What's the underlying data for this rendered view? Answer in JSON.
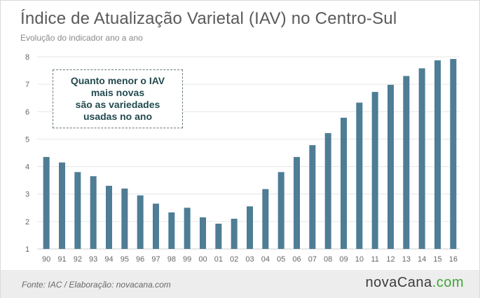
{
  "header": {
    "title": "Índice de Atualização Varietal (IAV) no Centro-Sul",
    "subtitle": "Evolução do indicador ano a ano"
  },
  "annotation": {
    "lines": [
      "Quanto menor o IAV",
      "mais novas",
      "são as variedades",
      "usadas no ano"
    ]
  },
  "footer": {
    "source": "Fonte: IAC / Elaboração: novacana.com",
    "logo_main": "nova",
    "logo_brand": "Cana",
    "logo_suffix": ".com"
  },
  "colors": {
    "bar": "#4e7d95",
    "grid": "#e6e6e6",
    "axis": "#cccccc",
    "text": "#666666"
  },
  "chart_data": {
    "type": "bar",
    "title": "Índice de Atualização Varietal (IAV) no Centro-Sul",
    "subtitle": "Evolução do indicador ano a ano",
    "xlabel": "",
    "ylabel": "",
    "categories": [
      "90",
      "91",
      "92",
      "93",
      "94",
      "95",
      "96",
      "97",
      "98",
      "99",
      "00",
      "01",
      "02",
      "03",
      "04",
      "05",
      "06",
      "07",
      "08",
      "09",
      "10",
      "11",
      "12",
      "13",
      "14",
      "15",
      "16"
    ],
    "values": [
      4.35,
      4.15,
      3.8,
      3.65,
      3.3,
      3.2,
      2.95,
      2.65,
      2.33,
      2.5,
      2.15,
      1.92,
      2.1,
      2.55,
      3.18,
      3.8,
      4.35,
      4.78,
      5.22,
      5.78,
      6.33,
      6.72,
      6.98,
      7.3,
      7.58,
      7.87,
      7.92
    ],
    "ylim": [
      1,
      8
    ],
    "yticks": [
      1,
      2,
      3,
      4,
      5,
      6,
      7,
      8
    ],
    "grid": true,
    "legend": "none"
  }
}
